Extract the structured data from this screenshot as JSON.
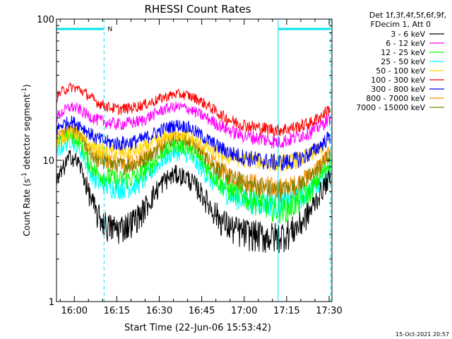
{
  "chart_data": {
    "type": "line",
    "title": "RHESSI Count Rates",
    "xlabel": "Start Time (22-Jun-06 15:53:42)",
    "ylabel_main": "Count Rate (s",
    "ylabel_sup1": "-1",
    "ylabel_mid": " detector segment",
    "ylabel_sup2": "-1",
    "ylabel_end": ")",
    "yscale": "log",
    "ylim": [
      1,
      100
    ],
    "xlim": [
      "15:53:42",
      "17:31:00"
    ],
    "x_ticks": [
      "16:00",
      "16:15",
      "16:30",
      "16:45",
      "17:00",
      "17:15",
      "17:30"
    ],
    "y_ticks": [
      "1",
      "10",
      "100"
    ],
    "legend_header": [
      "Det 1f,3f,4f,5f,6f,9f,",
      "FDecim 1, Att 0"
    ],
    "legend_position": "right",
    "timestamp": "15-Oct-2021 20:57",
    "night_marker_label": "N",
    "night_intervals": [
      [
        "15:53:42",
        "16:10:30"
      ],
      [
        "17:12:00",
        "17:30:30"
      ]
    ],
    "series": [
      {
        "name": "3 - 6 keV",
        "color": "#000000",
        "values": [
          [
            0,
            6.8
          ],
          [
            2,
            8.5
          ],
          [
            5,
            10.8
          ],
          [
            8,
            9.5
          ],
          [
            11,
            6.2
          ],
          [
            14,
            4.2
          ],
          [
            18,
            3.4
          ],
          [
            22,
            3.3
          ],
          [
            26,
            3.6
          ],
          [
            30,
            4.2
          ],
          [
            34,
            5.6
          ],
          [
            38,
            7.2
          ],
          [
            42,
            8.0
          ],
          [
            46,
            7.6
          ],
          [
            50,
            6.3
          ],
          [
            54,
            4.8
          ],
          [
            58,
            3.8
          ],
          [
            62,
            3.3
          ],
          [
            66,
            3.1
          ],
          [
            70,
            3.0
          ],
          [
            74,
            2.9
          ],
          [
            78,
            2.9
          ],
          [
            82,
            3.1
          ],
          [
            86,
            3.5
          ],
          [
            90,
            4.5
          ],
          [
            94,
            6.3
          ],
          [
            96,
            7.3
          ]
        ]
      },
      {
        "name": "6 - 12 keV",
        "color": "#ff00ff",
        "values": [
          [
            0,
            20
          ],
          [
            2,
            22
          ],
          [
            5,
            24
          ],
          [
            8,
            23
          ],
          [
            11,
            21
          ],
          [
            14,
            19.5
          ],
          [
            18,
            18.5
          ],
          [
            22,
            18
          ],
          [
            26,
            18.5
          ],
          [
            30,
            19
          ],
          [
            34,
            21
          ],
          [
            38,
            23
          ],
          [
            42,
            24
          ],
          [
            46,
            23.5
          ],
          [
            50,
            21.5
          ],
          [
            54,
            19.5
          ],
          [
            58,
            17.5
          ],
          [
            62,
            16
          ],
          [
            66,
            15
          ],
          [
            70,
            14.5
          ],
          [
            74,
            14
          ],
          [
            78,
            13.5
          ],
          [
            82,
            14
          ],
          [
            86,
            15
          ],
          [
            90,
            16
          ],
          [
            94,
            18
          ],
          [
            96,
            19.5
          ]
        ]
      },
      {
        "name": "12 - 25 keV",
        "color": "#00ff00",
        "values": [
          [
            0,
            12.5
          ],
          [
            2,
            14
          ],
          [
            5,
            15
          ],
          [
            8,
            13.5
          ],
          [
            11,
            10
          ],
          [
            14,
            8.2
          ],
          [
            18,
            7.6
          ],
          [
            22,
            7.3
          ],
          [
            26,
            7.4
          ],
          [
            30,
            8
          ],
          [
            34,
            9.5
          ],
          [
            38,
            11.5
          ],
          [
            42,
            12.8
          ],
          [
            46,
            12.3
          ],
          [
            50,
            10.5
          ],
          [
            54,
            8.5
          ],
          [
            58,
            6.8
          ],
          [
            62,
            6
          ],
          [
            66,
            5.5
          ],
          [
            70,
            5.1
          ],
          [
            74,
            4.8
          ],
          [
            78,
            4.5
          ],
          [
            82,
            4.6
          ],
          [
            86,
            5.2
          ],
          [
            90,
            6.2
          ],
          [
            94,
            8
          ],
          [
            96,
            9.5
          ]
        ]
      },
      {
        "name": "25 - 50 keV",
        "color": "#00ffff",
        "values": [
          [
            0,
            11
          ],
          [
            2,
            12.5
          ],
          [
            5,
            13.8
          ],
          [
            8,
            12.2
          ],
          [
            11,
            9
          ],
          [
            14,
            7.1
          ],
          [
            18,
            6.6
          ],
          [
            22,
            6.4
          ],
          [
            26,
            6.5
          ],
          [
            30,
            7
          ],
          [
            34,
            8.5
          ],
          [
            38,
            10.3
          ],
          [
            42,
            11.5
          ],
          [
            46,
            11
          ],
          [
            50,
            9.3
          ],
          [
            54,
            7.5
          ],
          [
            58,
            6.3
          ],
          [
            62,
            5.6
          ],
          [
            66,
            5.3
          ],
          [
            70,
            5.1
          ],
          [
            74,
            5
          ],
          [
            78,
            4.9
          ],
          [
            82,
            5
          ],
          [
            86,
            5.4
          ],
          [
            90,
            6.2
          ],
          [
            94,
            7.6
          ],
          [
            96,
            8.5
          ]
        ]
      },
      {
        "name": "50 - 100 keV",
        "color": "#ffd700",
        "values": [
          [
            0,
            13
          ],
          [
            2,
            14.5
          ],
          [
            5,
            16
          ],
          [
            8,
            15
          ],
          [
            11,
            13
          ],
          [
            14,
            12
          ],
          [
            18,
            11.5
          ],
          [
            22,
            11.3
          ],
          [
            26,
            11.5
          ],
          [
            30,
            12
          ],
          [
            34,
            13.2
          ],
          [
            38,
            14.5
          ],
          [
            42,
            15.5
          ],
          [
            46,
            15
          ],
          [
            50,
            13.5
          ],
          [
            54,
            12
          ],
          [
            58,
            11
          ],
          [
            62,
            10.5
          ],
          [
            66,
            10.2
          ],
          [
            70,
            10
          ],
          [
            74,
            9.8
          ],
          [
            78,
            9.6
          ],
          [
            82,
            9.7
          ],
          [
            86,
            10.2
          ],
          [
            90,
            11
          ],
          [
            94,
            12.5
          ],
          [
            96,
            13.5
          ]
        ]
      },
      {
        "name": "100 - 300 keV",
        "color": "#ff0000",
        "values": [
          [
            0,
            28
          ],
          [
            2,
            31
          ],
          [
            5,
            33
          ],
          [
            8,
            32
          ],
          [
            11,
            29
          ],
          [
            14,
            26
          ],
          [
            18,
            24
          ],
          [
            22,
            23
          ],
          [
            26,
            23.5
          ],
          [
            30,
            24.5
          ],
          [
            34,
            26
          ],
          [
            38,
            28
          ],
          [
            42,
            29.5
          ],
          [
            46,
            29
          ],
          [
            50,
            27
          ],
          [
            54,
            24
          ],
          [
            58,
            21
          ],
          [
            62,
            19
          ],
          [
            66,
            18
          ],
          [
            70,
            17.2
          ],
          [
            74,
            16.8
          ],
          [
            78,
            16.5
          ],
          [
            82,
            16.8
          ],
          [
            86,
            17.5
          ],
          [
            90,
            18.5
          ],
          [
            94,
            21
          ],
          [
            96,
            23
          ]
        ]
      },
      {
        "name": "300 - 800 keV",
        "color": "#0000ff",
        "values": [
          [
            0,
            16.5
          ],
          [
            2,
            18
          ],
          [
            5,
            19
          ],
          [
            8,
            18
          ],
          [
            11,
            16
          ],
          [
            14,
            14.3
          ],
          [
            18,
            13.5
          ],
          [
            22,
            13.2
          ],
          [
            26,
            13.4
          ],
          [
            30,
            14
          ],
          [
            34,
            15.3
          ],
          [
            38,
            16.8
          ],
          [
            42,
            17.8
          ],
          [
            46,
            17.4
          ],
          [
            50,
            15.6
          ],
          [
            54,
            13.7
          ],
          [
            58,
            12.2
          ],
          [
            62,
            11.2
          ],
          [
            66,
            10.6
          ],
          [
            70,
            10.2
          ],
          [
            74,
            9.9
          ],
          [
            78,
            9.7
          ],
          [
            82,
            9.8
          ],
          [
            86,
            10.3
          ],
          [
            90,
            11.3
          ],
          [
            94,
            13.2
          ],
          [
            96,
            14.5
          ]
        ]
      },
      {
        "name": "800 - 7000 keV",
        "color": "#ff8c00",
        "values": [
          [
            0,
            14.2
          ],
          [
            2,
            15.5
          ],
          [
            5,
            16.5
          ],
          [
            8,
            15.3
          ],
          [
            11,
            12.5
          ],
          [
            14,
            10.6
          ],
          [
            18,
            9.9
          ],
          [
            22,
            9.6
          ],
          [
            26,
            9.7
          ],
          [
            30,
            10.2
          ],
          [
            34,
            11.6
          ],
          [
            38,
            13.4
          ],
          [
            42,
            14.6
          ],
          [
            46,
            14.1
          ],
          [
            50,
            12.2
          ],
          [
            54,
            10.1
          ],
          [
            58,
            8.6
          ],
          [
            62,
            7.7
          ],
          [
            66,
            7.2
          ],
          [
            70,
            6.9
          ],
          [
            74,
            6.6
          ],
          [
            78,
            6.4
          ],
          [
            82,
            6.5
          ],
          [
            86,
            7
          ],
          [
            90,
            8
          ],
          [
            94,
            9.8
          ],
          [
            96,
            11
          ]
        ]
      },
      {
        "name": "7000 - 15000 keV",
        "color": "#808000",
        "values": [
          [
            0,
            13.6
          ],
          [
            2,
            15
          ],
          [
            5,
            16
          ],
          [
            8,
            14.8
          ],
          [
            11,
            12
          ],
          [
            14,
            10.2
          ],
          [
            18,
            9.5
          ],
          [
            22,
            9.2
          ],
          [
            26,
            9.3
          ],
          [
            30,
            9.8
          ],
          [
            34,
            11.2
          ],
          [
            38,
            13
          ],
          [
            42,
            14.1
          ],
          [
            46,
            13.6
          ],
          [
            50,
            11.8
          ],
          [
            54,
            9.8
          ],
          [
            58,
            8.3
          ],
          [
            62,
            7.4
          ],
          [
            66,
            6.9
          ],
          [
            70,
            6.6
          ],
          [
            74,
            6.3
          ],
          [
            78,
            6.1
          ],
          [
            82,
            6.2
          ],
          [
            86,
            6.7
          ],
          [
            90,
            7.7
          ],
          [
            94,
            9.4
          ],
          [
            96,
            10.6
          ]
        ]
      }
    ]
  }
}
